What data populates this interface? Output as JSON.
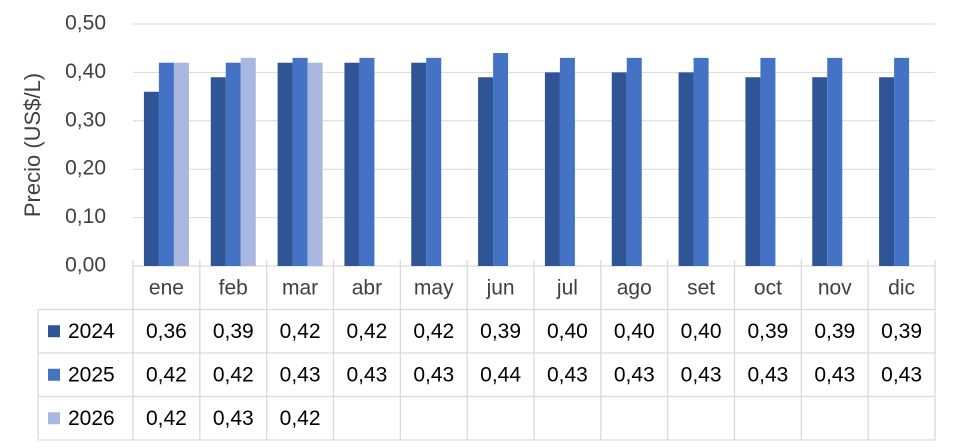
{
  "chart_data": {
    "type": "bar",
    "y_label": "Precio  (US$/L)",
    "categories": [
      "ene",
      "feb",
      "mar",
      "abr",
      "may",
      "jun",
      "jul",
      "ago",
      "set",
      "oct",
      "nov",
      "dic"
    ],
    "series": [
      {
        "name": "2024",
        "color": "#2f5597",
        "values": [
          0.36,
          0.39,
          0.42,
          0.42,
          0.42,
          0.39,
          0.4,
          0.4,
          0.4,
          0.39,
          0.39,
          0.39
        ],
        "value_labels": [
          "0,36",
          "0,39",
          "0,42",
          "0,42",
          "0,42",
          "0,39",
          "0,40",
          "0,40",
          "0,40",
          "0,39",
          "0,39",
          "0,39"
        ]
      },
      {
        "name": "2025",
        "color": "#4472c4",
        "values": [
          0.42,
          0.42,
          0.43,
          0.43,
          0.43,
          0.44,
          0.43,
          0.43,
          0.43,
          0.43,
          0.43,
          0.43
        ],
        "value_labels": [
          "0,42",
          "0,42",
          "0,43",
          "0,43",
          "0,43",
          "0,44",
          "0,43",
          "0,43",
          "0,43",
          "0,43",
          "0,43",
          "0,43"
        ]
      },
      {
        "name": "2026",
        "color": "#a9b8e0",
        "values": [
          0.42,
          0.43,
          0.42,
          null,
          null,
          null,
          null,
          null,
          null,
          null,
          null,
          null
        ],
        "value_labels": [
          "0,42",
          "0,43",
          "0,42",
          null,
          null,
          null,
          null,
          null,
          null,
          null,
          null,
          null
        ]
      }
    ],
    "ylim": [
      0,
      0.5
    ],
    "yticks": [
      {
        "value": 0,
        "label": "0,00"
      },
      {
        "value": 0.1,
        "label": "0,10"
      },
      {
        "value": 0.2,
        "label": "0,20"
      },
      {
        "value": 0.3,
        "label": "0,30"
      },
      {
        "value": 0.4,
        "label": "0,40"
      },
      {
        "value": 0.5,
        "label": "0,50"
      }
    ],
    "grid": true
  }
}
